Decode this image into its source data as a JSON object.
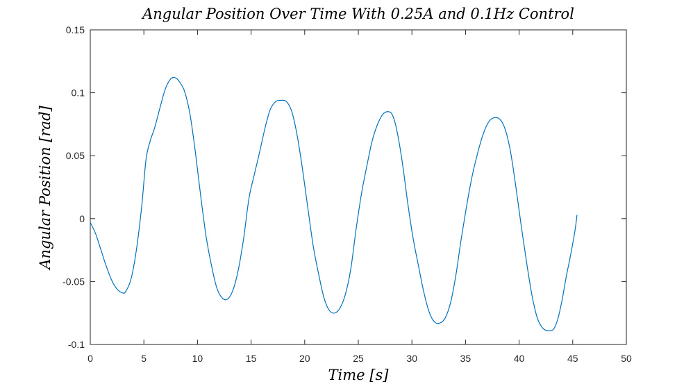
{
  "chart_data": {
    "type": "line",
    "title": "Angular Position Over Time With 0.25A and 0.1Hz Control",
    "xlabel": "Time [s]",
    "ylabel": "Angular Position [rad]",
    "xlim": [
      0,
      50
    ],
    "ylim": [
      -0.1,
      0.15
    ],
    "x_ticks": [
      0,
      5,
      10,
      15,
      20,
      25,
      30,
      35,
      40,
      45,
      50
    ],
    "y_ticks": [
      -0.1,
      -0.05,
      0,
      0.05,
      0.1,
      0.15
    ],
    "x_tick_labels": [
      "0",
      "5",
      "10",
      "15",
      "20",
      "25",
      "30",
      "35",
      "40",
      "45",
      "50"
    ],
    "y_tick_labels": [
      "-0.1",
      "-0.05",
      "0",
      "0.05",
      "0.1",
      "0.15"
    ],
    "grid": false,
    "line_color": "#0072BD",
    "series": [
      {
        "x": [
          0,
          0.5,
          1.0,
          1.5,
          2.0,
          2.5,
          3.0,
          3.3,
          3.8,
          4.3,
          4.8,
          5.2,
          5.6,
          6.0,
          6.5,
          7.0,
          7.5,
          7.9,
          8.3,
          8.8,
          9.3,
          9.8,
          10.3,
          10.8,
          11.3,
          11.8,
          12.3,
          12.8,
          13.3,
          13.8,
          14.3,
          14.8,
          15.3,
          15.8,
          16.3,
          16.8,
          17.3,
          17.8,
          18.3,
          18.8,
          19.3,
          19.8,
          20.3,
          20.8,
          21.3,
          21.8,
          22.3,
          22.8,
          23.3,
          23.8,
          24.3,
          24.8,
          25.3,
          25.8,
          26.3,
          26.8,
          27.3,
          27.8,
          28.2,
          28.6,
          29.1,
          29.6,
          30.1,
          30.6,
          31.1,
          31.6,
          32.1,
          32.6,
          33.1,
          33.6,
          34.1,
          34.6,
          35.1,
          35.6,
          36.1,
          36.6,
          37.1,
          37.6,
          38.2,
          38.7,
          39.2,
          39.7,
          40.2,
          40.7,
          41.2,
          41.7,
          42.2,
          42.7,
          43.2,
          43.6,
          44.0,
          44.4,
          44.8,
          45.2,
          45.4
        ],
        "y": [
          -0.003,
          -0.012,
          -0.025,
          -0.038,
          -0.049,
          -0.056,
          -0.059,
          -0.058,
          -0.048,
          -0.025,
          0.01,
          0.047,
          0.062,
          0.072,
          0.088,
          0.103,
          0.111,
          0.112,
          0.109,
          0.101,
          0.083,
          0.053,
          0.018,
          -0.014,
          -0.037,
          -0.055,
          -0.063,
          -0.064,
          -0.057,
          -0.041,
          -0.016,
          0.016,
          0.035,
          0.053,
          0.072,
          0.087,
          0.093,
          0.094,
          0.093,
          0.085,
          0.066,
          0.039,
          0.008,
          -0.022,
          -0.044,
          -0.063,
          -0.073,
          -0.075,
          -0.071,
          -0.06,
          -0.04,
          -0.008,
          0.02,
          0.042,
          0.062,
          0.075,
          0.083,
          0.085,
          0.082,
          0.07,
          0.045,
          0.013,
          -0.015,
          -0.037,
          -0.058,
          -0.074,
          -0.082,
          -0.083,
          -0.079,
          -0.067,
          -0.045,
          -0.016,
          0.01,
          0.033,
          0.051,
          0.066,
          0.076,
          0.08,
          0.079,
          0.071,
          0.053,
          0.025,
          -0.006,
          -0.035,
          -0.061,
          -0.079,
          -0.087,
          -0.089,
          -0.088,
          -0.08,
          -0.065,
          -0.046,
          -0.029,
          -0.01,
          0.003
        ]
      }
    ]
  }
}
